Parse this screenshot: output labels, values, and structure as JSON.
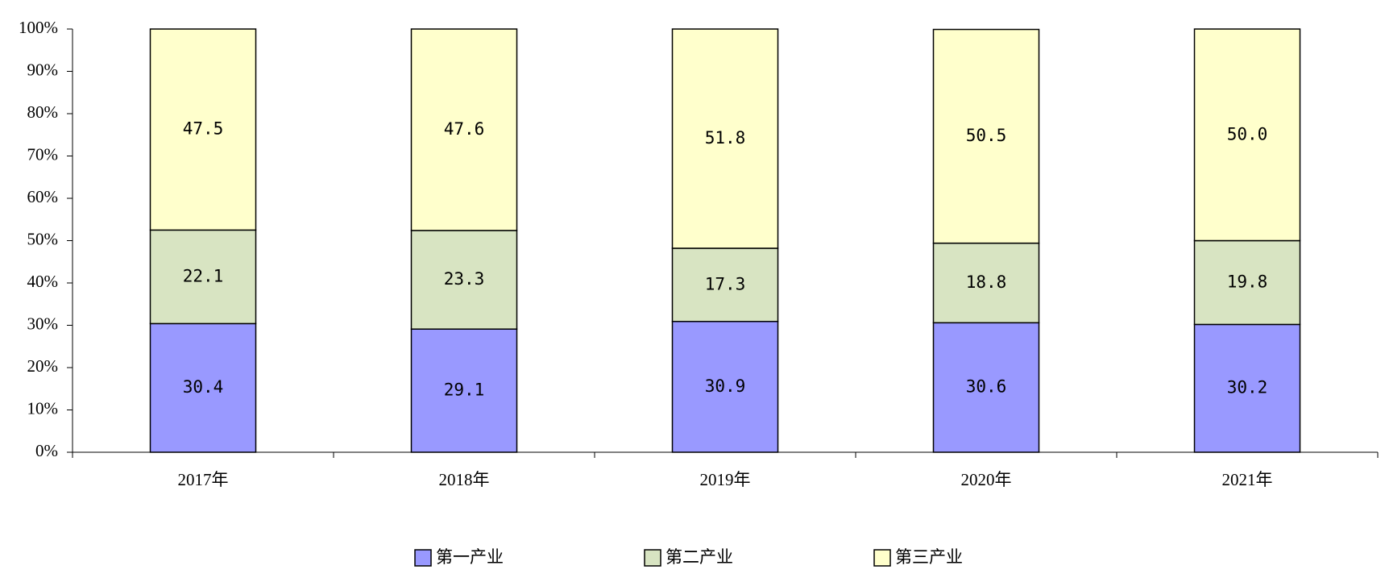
{
  "chart_data": {
    "type": "stacked_bar",
    "categories": [
      "2017年",
      "2018年",
      "2019年",
      "2020年",
      "2021年"
    ],
    "series": [
      {
        "name": "第一产业",
        "color": "#9999ff",
        "values": [
          30.4,
          29.1,
          30.9,
          30.6,
          30.2
        ],
        "value_labels": [
          "30.4",
          "29.1",
          "30.9",
          "30.6",
          "30.2"
        ]
      },
      {
        "name": "第二产业",
        "color": "#d8e4c2",
        "values": [
          22.1,
          23.3,
          17.3,
          18.8,
          19.8
        ],
        "value_labels": [
          "22.1",
          "23.3",
          "17.3",
          "18.8",
          "19.8"
        ]
      },
      {
        "name": "第三产业",
        "color": "#ffffcc",
        "values": [
          47.5,
          47.6,
          51.8,
          50.5,
          50.0
        ],
        "value_labels": [
          "47.5",
          "47.6",
          "51.8",
          "50.5",
          "50.0"
        ]
      }
    ],
    "ylim": [
      0,
      100
    ],
    "yticks": [
      {
        "value": 0,
        "label": "0%"
      },
      {
        "value": 10,
        "label": "10%"
      },
      {
        "value": 20,
        "label": "20%"
      },
      {
        "value": 30,
        "label": "30%"
      },
      {
        "value": 40,
        "label": "40%"
      },
      {
        "value": 50,
        "label": "50%"
      },
      {
        "value": 60,
        "label": "60%"
      },
      {
        "value": 70,
        "label": "70%"
      },
      {
        "value": 80,
        "label": "80%"
      },
      {
        "value": 90,
        "label": "90%"
      },
      {
        "value": 100,
        "label": "100%"
      }
    ],
    "legend": "bottom"
  }
}
